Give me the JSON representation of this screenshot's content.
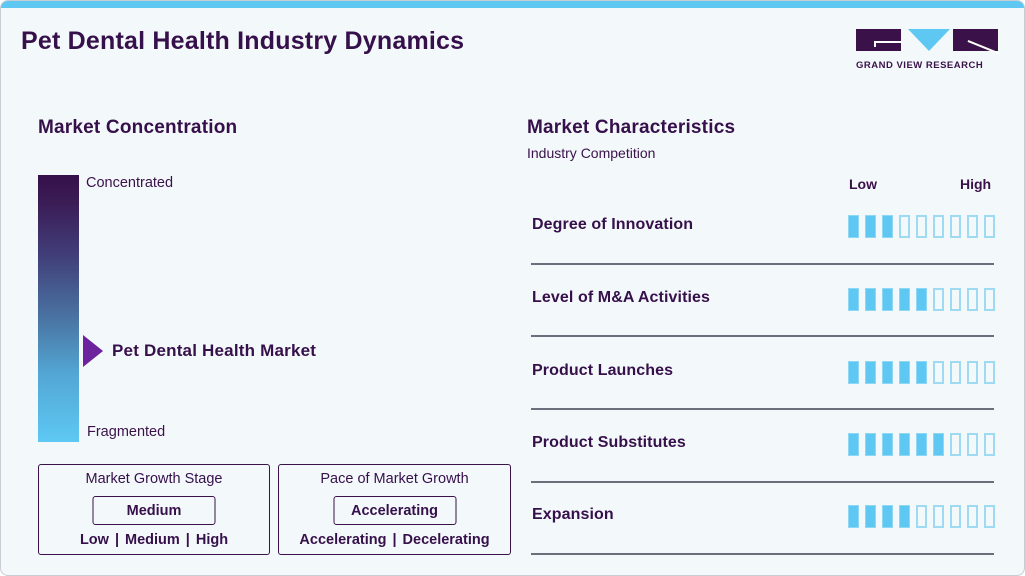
{
  "header": {
    "title": "Pet Dental Health Industry Dynamics",
    "logo_text": "GRAND VIEW RESEARCH"
  },
  "colors": {
    "accent_blue": "#5fc8f2",
    "brand_purple": "#3a1249",
    "marker_purple": "#6d229e",
    "background": "#f3f8fb"
  },
  "market_concentration": {
    "title": "Market Concentration",
    "top_label": "Concentrated",
    "bottom_label": "Fragmented",
    "marker_label": "Pet Dental Health Market"
  },
  "growth_stage": {
    "title": "Market Growth Stage",
    "value": "Medium",
    "options": [
      "Low",
      "Medium",
      "High"
    ],
    "separator": "|"
  },
  "pace_of_growth": {
    "title": "Pace of Market Growth",
    "value": "Accelerating",
    "options": [
      "Accelerating",
      "Decelerating"
    ],
    "separator": "|"
  },
  "market_characteristics": {
    "title": "Market Characteristics",
    "subtitle": "Industry Competition",
    "scale_low": "Low",
    "scale_high": "High",
    "max_segments": 9,
    "rows": [
      {
        "label": "Degree of Innovation",
        "filled": 3
      },
      {
        "label": "Level of M&A Activities",
        "filled": 5
      },
      {
        "label": "Product Launches",
        "filled": 5
      },
      {
        "label": "Product Substitutes",
        "filled": 6
      },
      {
        "label": "Expansion",
        "filled": 4
      }
    ]
  }
}
